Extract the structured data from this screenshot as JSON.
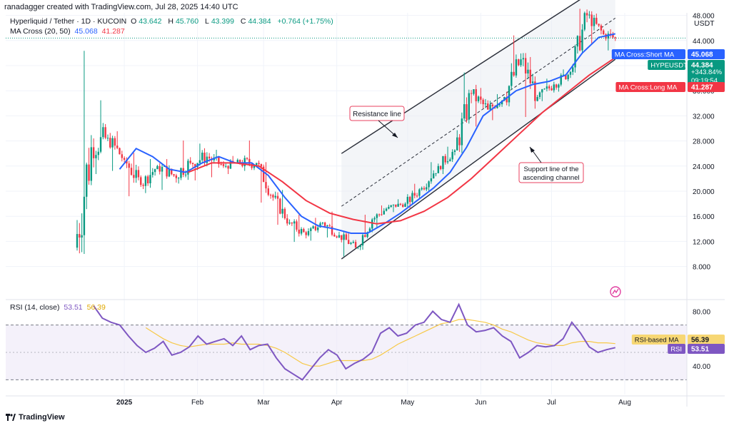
{
  "header": {
    "creator_line": "ranadagger created with TradingView.com, Jul 28, 2025 14:40 UTC",
    "symbol_title": "Hyperliquid / Tether · 1D · KUCOIN",
    "ohlc": {
      "open_label": "O",
      "open": "43.642",
      "high_label": "H",
      "high": "45.760",
      "low_label": "L",
      "low": "43.399",
      "close_label": "C",
      "close": "44.384",
      "change": "+0.764 (+1.75%)"
    },
    "ma_label": "MA Cross (20, 50)",
    "ma_short_value": "45.068",
    "ma_long_value": "41.287",
    "rsi_label": "RSI (14, close)",
    "rsi_value": "53.51",
    "rsi_ma_value": "56.39"
  },
  "price_axis": {
    "currency": "USDT",
    "ticks": [
      "48.000",
      "44.000",
      "40.000",
      "36.000",
      "32.000",
      "28.000",
      "24.000",
      "20.000",
      "16.000",
      "12.000",
      "8.000"
    ]
  },
  "rsi_axis": {
    "ticks": [
      "80.00",
      "40.00"
    ]
  },
  "time_axis": {
    "ticks": [
      "2025",
      "Feb",
      "Mar",
      "Apr",
      "May",
      "Jun",
      "Jul",
      "Aug"
    ]
  },
  "price_labels": {
    "ma_short": {
      "text": "MA Cross:Short MA",
      "value": "45.068"
    },
    "symbol": {
      "text": "HYPEUSDT",
      "value": "44.384",
      "pct": "+343.84%",
      "countdown": "09:19:54"
    },
    "ma_long": {
      "text": "MA Cross:Long MA",
      "value": "41.287"
    }
  },
  "rsi_labels": {
    "rsi_ma": {
      "text": "RSI-based MA",
      "value": "56.39"
    },
    "rsi": {
      "text": "RSI",
      "value": "53.51"
    }
  },
  "annotations": {
    "resistance": "Resistance line",
    "support_line1": "Support line of the",
    "support_line2": "ascending channel"
  },
  "footer": {
    "brand": "TradingView"
  },
  "colors": {
    "up": "#089981",
    "down": "#f23645",
    "short_ma": "#2962ff",
    "long_ma": "#f23645",
    "rsi": "#7e57c2",
    "rsi_ma": "#f7c948",
    "channel": "#2a2e39",
    "annotation": "#e8425f"
  },
  "chart_data": {
    "type": "candlestick",
    "title": "Hyperliquid / Tether · 1D · KUCOIN",
    "x_range": [
      "2024-12-12",
      "2025-07-28"
    ],
    "ylim": [
      7,
      52
    ],
    "y_scale": "linear",
    "candles_weekly": [
      {
        "date": "2024-12-12",
        "open": 11.0,
        "high": 43.0,
        "low": 10.0,
        "close": 27.0
      },
      {
        "date": "2024-12-19",
        "open": 27.0,
        "high": 35.0,
        "low": 22.5,
        "close": 28.5
      },
      {
        "date": "2024-12-26",
        "open": 28.5,
        "high": 30.0,
        "low": 23.0,
        "close": 25.0
      },
      {
        "date": "2025-01-02",
        "open": 25.0,
        "high": 26.5,
        "low": 19.0,
        "close": 21.0
      },
      {
        "date": "2025-01-09",
        "open": 21.0,
        "high": 25.5,
        "low": 19.5,
        "close": 24.0
      },
      {
        "date": "2025-01-16",
        "open": 24.0,
        "high": 25.5,
        "low": 20.0,
        "close": 22.5
      },
      {
        "date": "2025-01-23",
        "open": 22.5,
        "high": 28.5,
        "low": 21.0,
        "close": 24.5
      },
      {
        "date": "2025-01-30",
        "open": 24.5,
        "high": 28.0,
        "low": 21.5,
        "close": 25.5
      },
      {
        "date": "2025-02-06",
        "open": 25.5,
        "high": 27.0,
        "low": 22.0,
        "close": 24.0
      },
      {
        "date": "2025-02-13",
        "open": 24.0,
        "high": 26.0,
        "low": 22.5,
        "close": 24.5
      },
      {
        "date": "2025-02-20",
        "open": 24.5,
        "high": 28.5,
        "low": 23.0,
        "close": 24.5
      },
      {
        "date": "2025-02-27",
        "open": 24.5,
        "high": 25.0,
        "low": 18.0,
        "close": 19.0
      },
      {
        "date": "2025-03-06",
        "open": 19.0,
        "high": 20.5,
        "low": 14.5,
        "close": 15.0
      },
      {
        "date": "2025-03-13",
        "open": 15.0,
        "high": 16.5,
        "low": 11.8,
        "close": 13.0
      },
      {
        "date": "2025-03-20",
        "open": 13.0,
        "high": 16.0,
        "low": 12.0,
        "close": 15.0
      },
      {
        "date": "2025-03-27",
        "open": 15.0,
        "high": 17.0,
        "low": 12.5,
        "close": 13.0
      },
      {
        "date": "2025-04-03",
        "open": 13.0,
        "high": 13.5,
        "low": 9.5,
        "close": 11.0
      },
      {
        "date": "2025-04-10",
        "open": 11.0,
        "high": 16.5,
        "low": 10.5,
        "close": 15.5
      },
      {
        "date": "2025-04-17",
        "open": 15.5,
        "high": 18.0,
        "low": 14.0,
        "close": 17.5
      },
      {
        "date": "2025-04-24",
        "open": 17.5,
        "high": 19.0,
        "low": 16.5,
        "close": 18.0
      },
      {
        "date": "2025-05-01",
        "open": 18.0,
        "high": 21.5,
        "low": 17.0,
        "close": 20.5
      },
      {
        "date": "2025-05-08",
        "open": 20.5,
        "high": 25.0,
        "low": 20.0,
        "close": 24.0
      },
      {
        "date": "2025-05-15",
        "open": 24.0,
        "high": 27.5,
        "low": 22.5,
        "close": 26.5
      },
      {
        "date": "2025-05-22",
        "open": 26.5,
        "high": 39.5,
        "low": 26.0,
        "close": 35.5
      },
      {
        "date": "2025-05-29",
        "open": 35.5,
        "high": 37.0,
        "low": 30.0,
        "close": 33.0
      },
      {
        "date": "2025-06-05",
        "open": 33.0,
        "high": 36.0,
        "low": 31.0,
        "close": 35.0
      },
      {
        "date": "2025-06-12",
        "open": 35.0,
        "high": 45.5,
        "low": 33.5,
        "close": 41.0
      },
      {
        "date": "2025-06-19",
        "open": 41.0,
        "high": 42.0,
        "low": 31.5,
        "close": 35.0
      },
      {
        "date": "2025-06-26",
        "open": 35.0,
        "high": 38.5,
        "low": 34.0,
        "close": 37.0
      },
      {
        "date": "2025-07-03",
        "open": 37.0,
        "high": 40.0,
        "low": 35.5,
        "close": 39.0
      },
      {
        "date": "2025-07-10",
        "open": 39.0,
        "high": 49.8,
        "low": 38.5,
        "close": 48.0
      },
      {
        "date": "2025-07-17",
        "open": 48.0,
        "high": 49.0,
        "low": 43.0,
        "close": 45.0
      },
      {
        "date": "2025-07-24",
        "open": 45.0,
        "high": 46.5,
        "low": 42.0,
        "close": 44.384
      }
    ],
    "series": [
      {
        "name": "MA Cross (20, 50)",
        "points": [
          [
            "2024-12-30",
            23.5
          ],
          [
            "2025-01-06",
            26.8
          ],
          [
            "2025-01-13",
            25.5
          ],
          [
            "2025-01-20",
            23.5
          ],
          [
            "2025-01-27",
            23.0
          ],
          [
            "2025-02-03",
            24.5
          ],
          [
            "2025-02-10",
            25.5
          ],
          [
            "2025-02-17",
            24.5
          ],
          [
            "2025-02-24",
            24.5
          ],
          [
            "2025-03-03",
            22.5
          ],
          [
            "2025-03-10",
            19.0
          ],
          [
            "2025-03-17",
            16.0
          ],
          [
            "2025-03-24",
            14.5
          ],
          [
            "2025-03-31",
            14.0
          ],
          [
            "2025-04-07",
            13.3
          ],
          [
            "2025-04-14",
            13.3
          ],
          [
            "2025-04-21",
            14.8
          ],
          [
            "2025-04-28",
            16.5
          ],
          [
            "2025-05-05",
            18.5
          ],
          [
            "2025-05-12",
            20.5
          ],
          [
            "2025-05-19",
            23.0
          ],
          [
            "2025-05-26",
            27.0
          ],
          [
            "2025-06-02",
            32.0
          ],
          [
            "2025-06-09",
            34.0
          ],
          [
            "2025-06-16",
            36.0
          ],
          [
            "2025-06-23",
            37.0
          ],
          [
            "2025-06-30",
            37.5
          ],
          [
            "2025-07-07",
            38.5
          ],
          [
            "2025-07-14",
            42.0
          ],
          [
            "2025-07-21",
            44.5
          ],
          [
            "2025-07-28",
            45.068
          ]
        ]
      },
      {
        "name": "",
        "points": [
          [
            "2025-01-28",
            23.0
          ],
          [
            "2025-02-07",
            24.5
          ],
          [
            "2025-02-17",
            24.5
          ],
          [
            "2025-02-27",
            24.0
          ],
          [
            "2025-03-09",
            21.5
          ],
          [
            "2025-03-19",
            18.5
          ],
          [
            "2025-03-29",
            16.5
          ],
          [
            "2025-04-08",
            15.5
          ],
          [
            "2025-04-18",
            14.8
          ],
          [
            "2025-04-28",
            15.3
          ],
          [
            "2025-05-08",
            16.8
          ],
          [
            "2025-05-18",
            19.0
          ],
          [
            "2025-05-28",
            22.0
          ],
          [
            "2025-06-07",
            25.5
          ],
          [
            "2025-06-17",
            29.0
          ],
          [
            "2025-06-27",
            32.5
          ],
          [
            "2025-07-07",
            35.5
          ],
          [
            "2025-07-17",
            38.5
          ],
          [
            "2025-07-28",
            41.287
          ]
        ]
      }
    ],
    "channel": {
      "upper": [
        [
          "2025-04-03",
          26.0
        ],
        [
          "2025-07-13",
          50.5
        ]
      ],
      "lower": [
        [
          "2025-04-03",
          9.2
        ],
        [
          "2025-07-28",
          41.0
        ]
      ]
    },
    "rsi": {
      "ylim": [
        10,
        95
      ],
      "band": [
        30,
        70
      ],
      "values": [
        84,
        75,
        72,
        70,
        62,
        55,
        50,
        53,
        58,
        48,
        50,
        54,
        62,
        56,
        58,
        60,
        55,
        62,
        52,
        55,
        56,
        46,
        38,
        34,
        30,
        38,
        46,
        52,
        48,
        38,
        42,
        45,
        50,
        64,
        68,
        62,
        64,
        70,
        72,
        80,
        74,
        72,
        85,
        70,
        65,
        66,
        68,
        62,
        58,
        46,
        50,
        55,
        54,
        55,
        60,
        72,
        64,
        54,
        50,
        52,
        53.51
      ],
      "ma_values": [
        null,
        null,
        null,
        null,
        null,
        null,
        68,
        64,
        60,
        57,
        55,
        54,
        55,
        56,
        56,
        56,
        57,
        56,
        56,
        56,
        55,
        53,
        50,
        46,
        42,
        40,
        40,
        42,
        44,
        44,
        44,
        44,
        45,
        48,
        52,
        56,
        59,
        62,
        65,
        68,
        71,
        72,
        74,
        74,
        73,
        72,
        70,
        67,
        65,
        62,
        59,
        57,
        56,
        55,
        55,
        57,
        58,
        58,
        57,
        57,
        56.39
      ]
    }
  }
}
